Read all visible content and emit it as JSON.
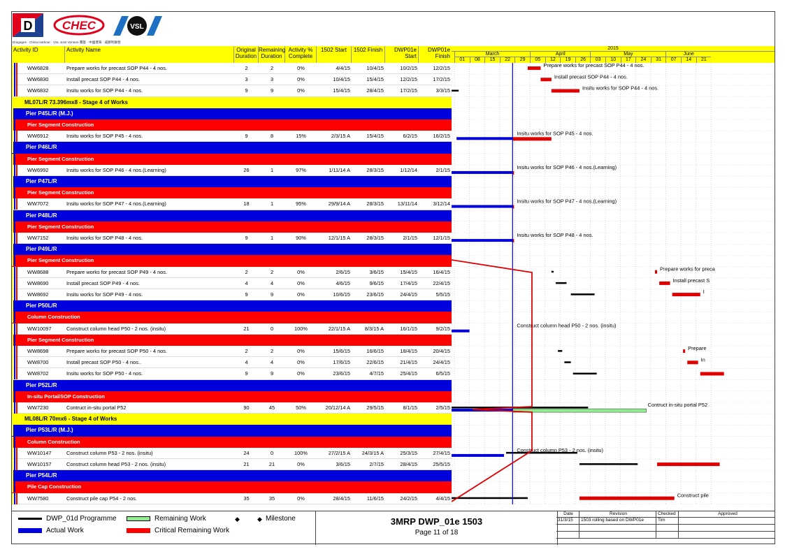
{
  "header": {
    "logo_joint_text": "Dragages · China Harbour · VSL Joint Venture  寶基 · 中國港灣 · 威勝利聯營",
    "logo_chec": "CHEC",
    "logo_vsl": "VSL",
    "logo_d": "D",
    "columns": {
      "activity_id": "Activity ID",
      "activity_name": "Activity Name",
      "orig_dur": "Original Duration",
      "rem_dur": "Remaining Duration",
      "pct": "Activity % Complete",
      "start1502": "1502 Start",
      "finish1502": "1502 Finish",
      "dwp_start": "DWP01e Start",
      "dwp_finish": "DWP01e Finish"
    },
    "year": "2015",
    "months": [
      "March",
      "April",
      "May",
      "June"
    ],
    "weeks": [
      "01",
      "08",
      "15",
      "22",
      "29",
      "05",
      "12",
      "19",
      "26",
      "03",
      "10",
      "17",
      "24",
      "31",
      "07",
      "14",
      "21"
    ]
  },
  "rows": [
    {
      "type": "act",
      "id": "WW6828",
      "name": "Prepare works for precast SOP P44 - 4 nos.",
      "od": "2",
      "rd": "2",
      "pct": "0%",
      "s": "4/4/15",
      "f": "10/4/15",
      "ds": "10/2/15",
      "df": "12/2/15"
    },
    {
      "type": "act",
      "id": "WW6830",
      "name": "Install precast SOP P44 - 4 nos.",
      "od": "3",
      "rd": "3",
      "pct": "0%",
      "s": "10/4/15",
      "f": "15/4/15",
      "ds": "12/2/15",
      "df": "17/2/15"
    },
    {
      "type": "act",
      "id": "WW6832",
      "name": "Insitu works for SOP P44 - 4 nos.",
      "od": "9",
      "rd": "9",
      "pct": "0%",
      "s": "15/4/15",
      "f": "28/4/15",
      "ds": "17/2/15",
      "df": "3/3/15"
    },
    {
      "type": "g1",
      "label": "ML07L/R 73.396mx8 - Stage 4 of Works"
    },
    {
      "type": "g2",
      "label": "Pier P45L/R (M.J.)"
    },
    {
      "type": "g3",
      "label": "Pier Segment Construction"
    },
    {
      "type": "act",
      "id": "WW6912",
      "name": "Insitu works for SOP P45 - 4 nos.",
      "od": "9",
      "rd": "8",
      "pct": "15%",
      "s": "2/3/15 A",
      "f": "15/4/15",
      "ds": "6/2/15",
      "df": "16/2/15"
    },
    {
      "type": "g2",
      "label": "Pier P46L/R"
    },
    {
      "type": "g3",
      "label": "Pier Segment Construction"
    },
    {
      "type": "act",
      "id": "WW6992",
      "name": "Insitu works for SOP P46 - 4 nos.(Learning)",
      "od": "26",
      "rd": "1",
      "pct": "97%",
      "s": "1/11/14 A",
      "f": "28/3/15",
      "ds": "1/12/14",
      "df": "2/1/15"
    },
    {
      "type": "g2",
      "label": "Pier P47L/R"
    },
    {
      "type": "g3",
      "label": "Pier Segment Construction"
    },
    {
      "type": "act",
      "id": "WW7072",
      "name": "Insitu works for SOP P47 - 4 nos.(Learning)",
      "od": "18",
      "rd": "1",
      "pct": "95%",
      "s": "29/9/14 A",
      "f": "28/3/15",
      "ds": "13/11/14",
      "df": "3/12/14"
    },
    {
      "type": "g2",
      "label": "Pier P48L/R"
    },
    {
      "type": "g3",
      "label": "Pier Segment Construction"
    },
    {
      "type": "act",
      "id": "WW7152",
      "name": "Insitu works for SOP P48 - 4 nos.",
      "od": "9",
      "rd": "1",
      "pct": "90%",
      "s": "12/1/15 A",
      "f": "28/3/15",
      "ds": "2/1/15",
      "df": "12/1/15"
    },
    {
      "type": "g2",
      "label": "Pier P49L/R"
    },
    {
      "type": "g3",
      "label": "Pier Segment Construction"
    },
    {
      "type": "act",
      "id": "WW8688",
      "name": "Prepare works for precast SOP P49 - 4 nos.",
      "od": "2",
      "rd": "2",
      "pct": "0%",
      "s": "2/6/15",
      "f": "3/6/15",
      "ds": "15/4/15",
      "df": "16/4/15"
    },
    {
      "type": "act",
      "id": "WW8690",
      "name": "Install precast SOP P49 - 4 nos.",
      "od": "4",
      "rd": "4",
      "pct": "0%",
      "s": "4/6/15",
      "f": "9/6/15",
      "ds": "17/4/15",
      "df": "22/4/15"
    },
    {
      "type": "act",
      "id": "WW8692",
      "name": "Insitu works for SOP P49 - 4 nos.",
      "od": "9",
      "rd": "9",
      "pct": "0%",
      "s": "10/6/15",
      "f": "23/6/15",
      "ds": "24/4/15",
      "df": "5/5/15"
    },
    {
      "type": "g2",
      "label": "Pier P50L/R"
    },
    {
      "type": "g3",
      "label": "Column Construction"
    },
    {
      "type": "act",
      "id": "WW10097",
      "name": "Construct column head P50 - 2 nos. (insitu)",
      "od": "21",
      "rd": "0",
      "pct": "100%",
      "s": "22/1/15 A",
      "f": "8/3/15 A",
      "ds": "16/1/15",
      "df": "9/2/15"
    },
    {
      "type": "g3",
      "label": "Pier Segment Construction"
    },
    {
      "type": "act",
      "id": "WW8698",
      "name": "Prepare works for precast SOP P50 - 4 nos.",
      "od": "2",
      "rd": "2",
      "pct": "0%",
      "s": "15/6/15",
      "f": "16/6/15",
      "ds": "18/4/15",
      "df": "20/4/15"
    },
    {
      "type": "act",
      "id": "WW8700",
      "name": "Install precast SOP P50 - 4 nos..",
      "od": "4",
      "rd": "4",
      "pct": "0%",
      "s": "17/6/15",
      "f": "22/6/15",
      "ds": "21/4/15",
      "df": "24/4/15"
    },
    {
      "type": "act",
      "id": "WW8702",
      "name": "Insitu works for SOP P50 - 4 nos.",
      "od": "9",
      "rd": "9",
      "pct": "0%",
      "s": "23/6/15",
      "f": "4/7/15",
      "ds": "25/4/15",
      "df": "6/5/15"
    },
    {
      "type": "g2",
      "label": "Pier P52L/R"
    },
    {
      "type": "g3",
      "label": "In-situ Portal/SOP Construction"
    },
    {
      "type": "act",
      "id": "WW7230",
      "name": "Contruct in-situ portal P52",
      "od": "90",
      "rd": "45",
      "pct": "50%",
      "s": "20/12/14 A",
      "f": "29/5/15",
      "ds": "8/1/15",
      "df": "2/5/15"
    },
    {
      "type": "g1",
      "label": "ML08L/R 70mx6 - Stage 4 of Works"
    },
    {
      "type": "g2",
      "label": "Pier P53L/R (M.J.)"
    },
    {
      "type": "g3",
      "label": "Column Construction"
    },
    {
      "type": "act",
      "id": "WW10147",
      "name": "Construct column P53 - 2 nos. (insitu)",
      "od": "24",
      "rd": "0",
      "pct": "100%",
      "s": "27/2/15 A",
      "f": "24/3/15 A",
      "ds": "25/3/15",
      "df": "27/4/15"
    },
    {
      "type": "act",
      "id": "WW10157",
      "name": "Construct column head P53 - 2 nos. (insitu)",
      "od": "21",
      "rd": "21",
      "pct": "0%",
      "s": "3/6/15",
      "f": "2/7/15",
      "ds": "28/4/15",
      "df": "25/5/15"
    },
    {
      "type": "g2",
      "label": "Pier P54L/R"
    },
    {
      "type": "g3",
      "label": "Pile Cap Construction"
    },
    {
      "type": "act",
      "id": "WW7580",
      "name": "Construct pile cap P54 - 2 nos.",
      "od": "35",
      "rd": "35",
      "pct": "0%",
      "s": "28/4/15",
      "f": "11/6/15",
      "ds": "24/2/15",
      "df": "4/4/15"
    }
  ],
  "bar_labels": {
    "WW6828": "Prepare works for precast SOP P44 - 4 nos.",
    "WW6830": "Install precast SOP P44 - 4 nos.",
    "WW6832": "Insitu works for SOP P44 - 4 nos.",
    "WW6912": "Insitu works for SOP P45 - 4 nos.",
    "WW6992": "Insitu works for SOP P46 - 4 nos.(Learning)",
    "WW7072": "Insitu works for SOP P47 - 4 nos.(Learning)",
    "WW7152": "Insitu works for SOP P48 - 4 nos.",
    "WW8688": "Prepare works for preca",
    "WW8690": "Install precast S",
    "WW8692": "I",
    "WW10097": "Construct column head P50 - 2 nos. (insitu)",
    "WW8698": "Prepare",
    "WW8700": "In",
    "WW7230": "Contruct in-situ portal P52",
    "WW10147": "Construct column P53 - 2 nos. (insitu)",
    "WW7580": "Construct pile"
  },
  "legend": {
    "dwp01d": "DWP_01d Programme",
    "remaining": "Remaining Work",
    "milestone": "Milestone",
    "actual": "Actual Work",
    "critical": "Critical Remaining Work",
    "milestone_glyph": "◆"
  },
  "title": {
    "main": "3MRP DWP_01e 1503",
    "page": "Page 11 of 18"
  },
  "revision": {
    "h_date": "Date",
    "h_revision": "Revision",
    "h_checked": "Checked",
    "h_approved": "Approved",
    "date": "31/3/15",
    "text": "1503 rolling based on DWP01e",
    "checked": "Tim"
  },
  "colors": {
    "yellow": "#ffff00",
    "blue": "#0000dd",
    "red": "#ff0000",
    "green": "#90ee90",
    "black": "#000000"
  }
}
